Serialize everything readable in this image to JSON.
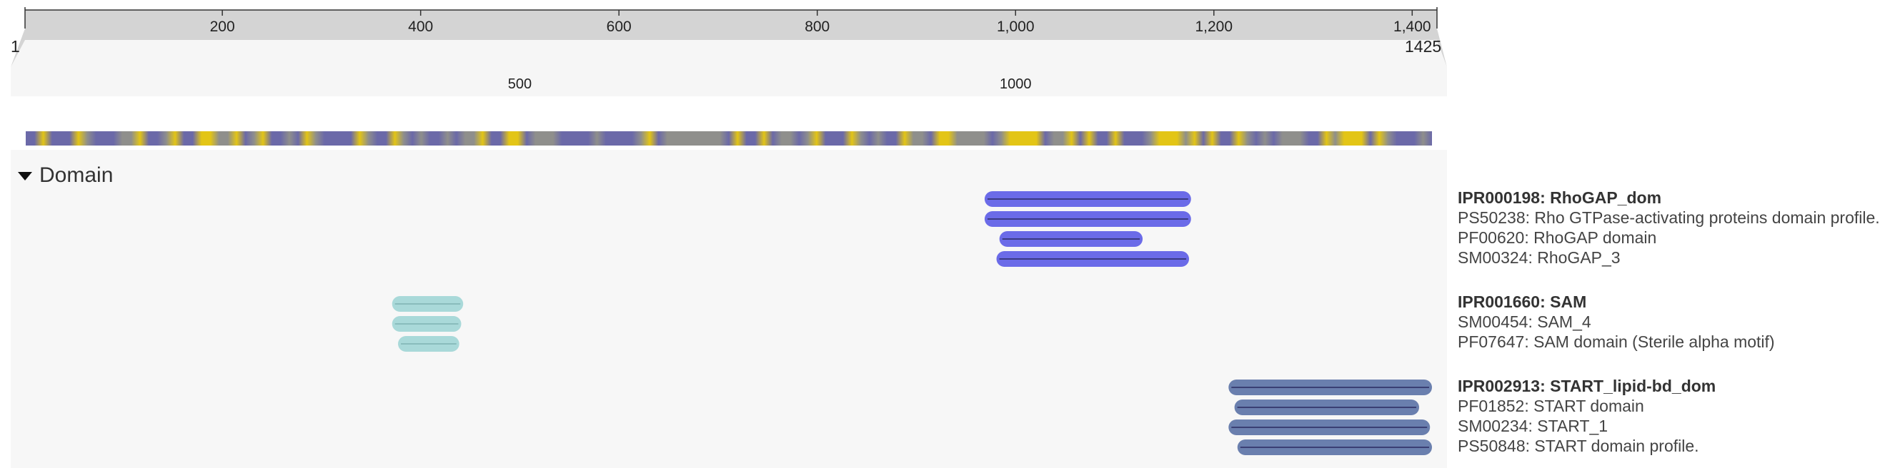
{
  "sequence": {
    "start_label": "1",
    "end_label": "1425",
    "length": 1425,
    "top_ticks": [
      {
        "value": 200,
        "label": "200"
      },
      {
        "value": 400,
        "label": "400"
      },
      {
        "value": 600,
        "label": "600"
      },
      {
        "value": 800,
        "label": "800"
      },
      {
        "value": 1000,
        "label": "1,000"
      },
      {
        "value": 1200,
        "label": "1,200"
      },
      {
        "value": 1400,
        "label": "1,400"
      }
    ],
    "bottom_ticks": [
      {
        "value": 500,
        "label": "500"
      },
      {
        "value": 1000,
        "label": "1000"
      }
    ]
  },
  "colors": {
    "ruler_band": "#d4d4d4",
    "zoom_region": "#f6f6f6",
    "track_blue": "#6b69a8",
    "track_yellow": "#e3c516",
    "track_grey": "#8f8f8c",
    "rhogap": "#6b6be8",
    "sam": "#a9d9d9",
    "start": "#6a7fae"
  },
  "domain_section": {
    "title": "Domain",
    "groups": [
      {
        "id": "IPR000198",
        "heading": "IPR000198: RhoGAP_dom",
        "color": "#6b6be8",
        "members": [
          "PS50238: Rho GTPase-activating proteins domain profile.",
          "PF00620: RhoGAP domain",
          "SM00324: RhoGAP_3"
        ],
        "features": [
          {
            "start": 972,
            "end": 1181
          },
          {
            "start": 972,
            "end": 1181
          },
          {
            "start": 987,
            "end": 1132
          },
          {
            "start": 984,
            "end": 1179
          }
        ]
      },
      {
        "id": "IPR001660",
        "heading": "IPR001660: SAM",
        "color": "#a9d9d9",
        "members": [
          "SM00454: SAM_4",
          "PF07647: SAM domain (Sterile alpha motif)"
        ],
        "features": [
          {
            "start": 372,
            "end": 444
          },
          {
            "start": 372,
            "end": 442
          },
          {
            "start": 378,
            "end": 440
          }
        ]
      },
      {
        "id": "IPR002913",
        "heading": "IPR002913: START_lipid-bd_dom",
        "color": "#6a7fae",
        "members": [
          "PF01852: START domain",
          "SM00234: START_1",
          "PS50848: START domain profile."
        ],
        "features": [
          {
            "start": 1219,
            "end": 1425
          },
          {
            "start": 1225,
            "end": 1412
          },
          {
            "start": 1219,
            "end": 1423
          },
          {
            "start": 1228,
            "end": 1425
          }
        ]
      }
    ]
  }
}
